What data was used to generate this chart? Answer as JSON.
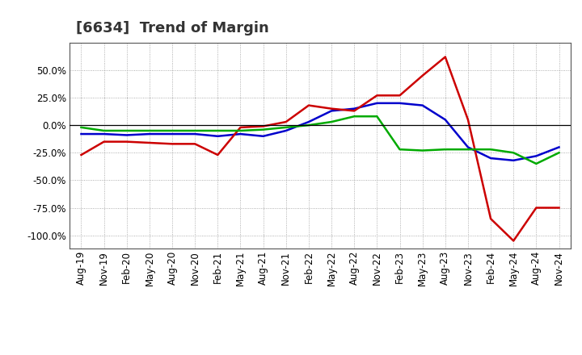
{
  "title": "[6634]  Trend of Margin",
  "background_color": "#ffffff",
  "plot_background": "#ffffff",
  "grid_color": "#999999",
  "ylim": [
    -112,
    75
  ],
  "yticks": [
    -100,
    -75,
    -50,
    -25,
    0,
    25,
    50
  ],
  "x_labels": [
    "Aug-19",
    "Nov-19",
    "Feb-20",
    "May-20",
    "Aug-20",
    "Nov-20",
    "Feb-21",
    "May-21",
    "Aug-21",
    "Nov-21",
    "Feb-22",
    "May-22",
    "Aug-22",
    "Nov-22",
    "Feb-23",
    "May-23",
    "Aug-23",
    "Nov-23",
    "Feb-24",
    "May-24",
    "Aug-24",
    "Nov-24"
  ],
  "ordinary_income": {
    "color": "#0000cc",
    "data": [
      -8,
      -8,
      -9,
      -8,
      -8,
      -8,
      -10,
      -8,
      -10,
      -5,
      3,
      13,
      15,
      20,
      20,
      18,
      5,
      -20,
      -30,
      -32,
      -28,
      -20
    ]
  },
  "net_income": {
    "color": "#cc0000",
    "data": [
      -27,
      -15,
      -15,
      -16,
      -17,
      -17,
      -27,
      -2,
      -1,
      3,
      18,
      15,
      13,
      27,
      27,
      45,
      62,
      5,
      -85,
      -105,
      -75,
      -75
    ]
  },
  "operating_cashflow": {
    "color": "#00aa00",
    "data": [
      -2,
      -5,
      -5,
      -5,
      -5,
      -5,
      -5,
      -5,
      -4,
      -2,
      0,
      3,
      8,
      8,
      -22,
      -23,
      -22,
      -22,
      -22,
      -25,
      -35,
      -25
    ]
  },
  "linewidth": 1.8,
  "title_fontsize": 13,
  "tick_fontsize": 8.5,
  "legend_fontsize": 9
}
